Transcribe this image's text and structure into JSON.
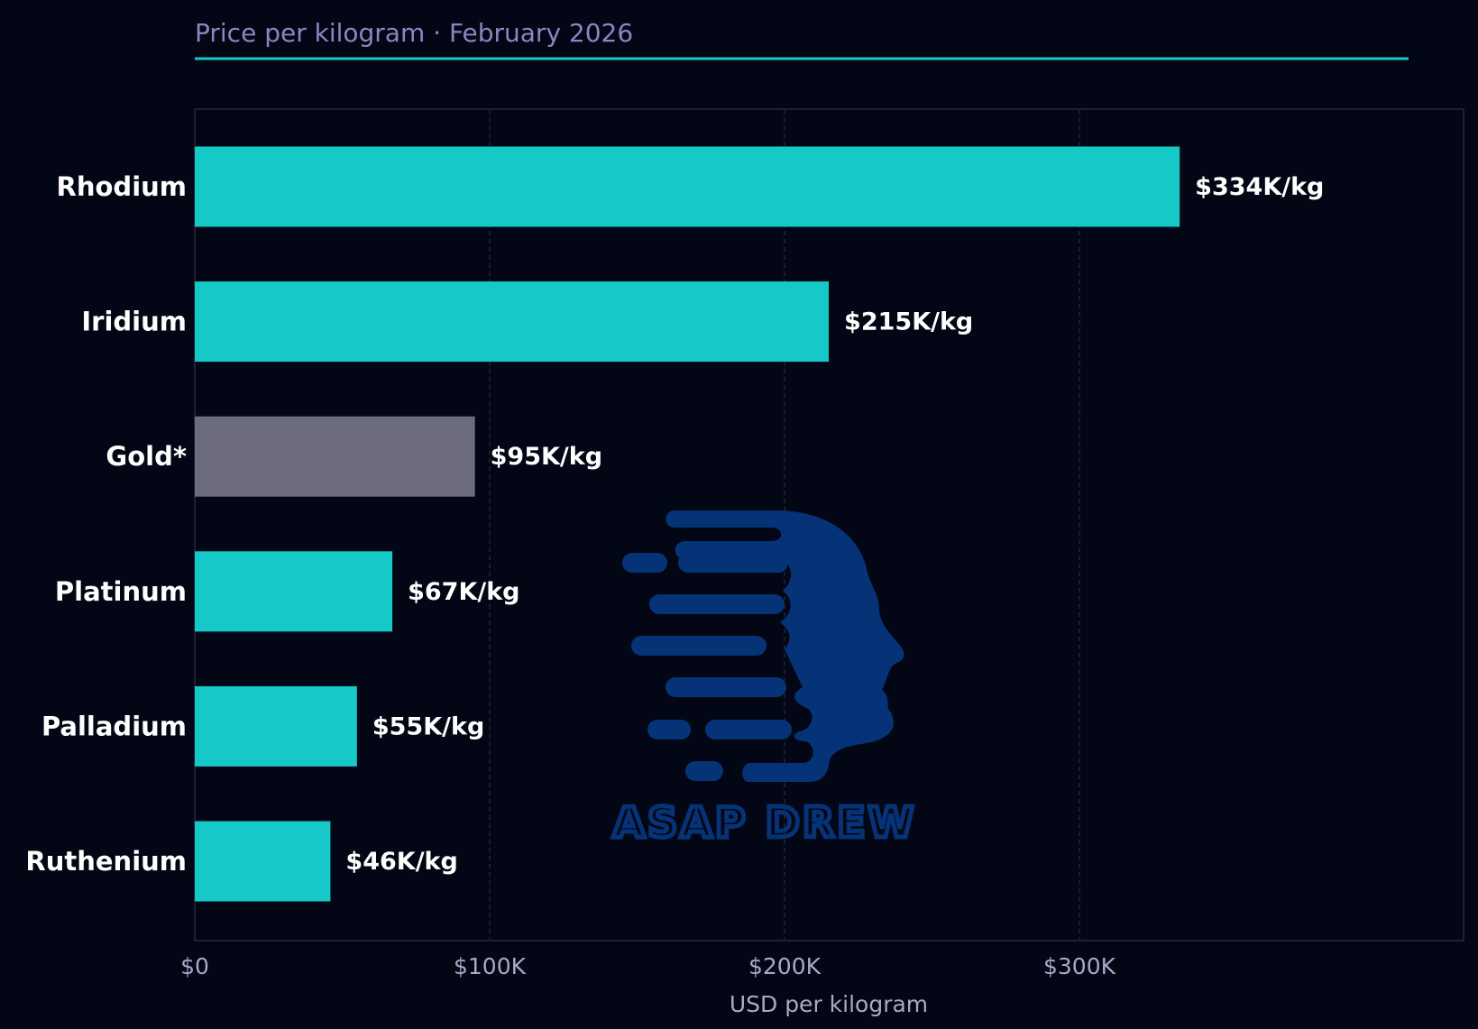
{
  "chart_data": {
    "type": "bar",
    "orientation": "horizontal",
    "title": "Price per kilogram · February 2026",
    "xlabel": "USD per kilogram",
    "ylabel": "",
    "xlim": [
      0,
      430000
    ],
    "xticks": [
      {
        "value": 0,
        "label": "$0"
      },
      {
        "value": 100000,
        "label": "$100K"
      },
      {
        "value": 200000,
        "label": "$200K"
      },
      {
        "value": 300000,
        "label": "$300K"
      }
    ],
    "grid": "vertical dashed",
    "categories": [
      "Rhodium",
      "Iridium",
      "Gold*",
      "Platinum",
      "Palladium",
      "Ruthenium"
    ],
    "values": [
      334000,
      215000,
      95000,
      67000,
      55000,
      46000
    ],
    "value_labels": [
      "$334K/kg",
      "$215K/kg",
      "$95K/kg",
      "$67K/kg",
      "$55K/kg",
      "$46K/kg"
    ],
    "highlight": [
      false,
      false,
      true,
      false,
      false,
      false
    ],
    "colors": {
      "bar": "#16c9c9",
      "highlight_bar": "#6c6c7e",
      "highlight_label": "#aaaabb",
      "accent_line": "#16c9c9",
      "background": "#030614",
      "frame": "#262843",
      "grid": "#22243a",
      "watermark": "#063377"
    }
  },
  "watermark": {
    "text": "ASAP DREW",
    "icon": "head-profile-icon"
  }
}
